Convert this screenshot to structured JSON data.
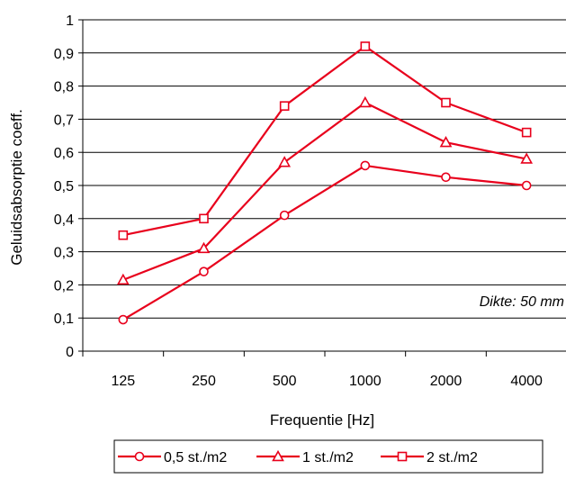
{
  "chart_data": {
    "type": "line",
    "categories": [
      "125",
      "250",
      "500",
      "1000",
      "2000",
      "4000"
    ],
    "series": [
      {
        "name": "0,5 st./m2",
        "marker": "circle",
        "values": [
          0.095,
          0.24,
          0.41,
          0.56,
          0.525,
          0.5
        ]
      },
      {
        "name": "1 st./m2",
        "marker": "triangle",
        "values": [
          0.215,
          0.31,
          0.57,
          0.75,
          0.63,
          0.58
        ]
      },
      {
        "name": "2 st./m2",
        "marker": "square",
        "values": [
          0.35,
          0.4,
          0.74,
          0.92,
          0.75,
          0.66
        ]
      }
    ],
    "xlabel": "Frequentie [Hz]",
    "ylabel": "Geluidsabsorptie coeff.",
    "ylim": [
      0,
      1
    ],
    "yticks": [
      "0",
      "0,1",
      "0,2",
      "0,3",
      "0,4",
      "0,5",
      "0,6",
      "0,7",
      "0,8",
      "0,9",
      "1"
    ],
    "annotation": "Dikte: 50 mm",
    "grid": true,
    "legend_position": "bottom",
    "line_color": "#e8001c"
  }
}
